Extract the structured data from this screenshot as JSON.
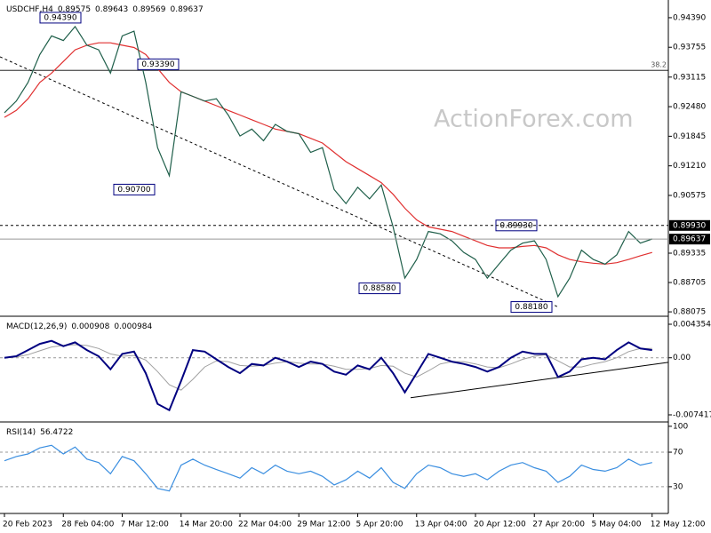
{
  "chart_data": [
    {
      "type": "line",
      "title": "USDCHF,H4",
      "ohlc": [
        0.89575,
        0.89643,
        0.89569,
        0.89637
      ],
      "watermark": "ActionForex.com",
      "categories": [
        "20 Feb 2023",
        null,
        null,
        null,
        null,
        "28 Feb 04:00",
        null,
        null,
        null,
        null,
        "7 Mar 12:00",
        null,
        null,
        null,
        null,
        "14 Mar 20:00",
        null,
        null,
        null,
        null,
        "22 Mar 04:00",
        null,
        null,
        null,
        null,
        "29 Mar 12:00",
        null,
        null,
        null,
        null,
        "5 Apr 20:00",
        null,
        null,
        null,
        null,
        "13 Apr 04:00",
        null,
        null,
        null,
        null,
        "20 Apr 12:00",
        null,
        null,
        null,
        null,
        "27 Apr 20:00",
        null,
        null,
        null,
        null,
        "5 May 04:00",
        null,
        null,
        null,
        null,
        "12 May 12:00"
      ],
      "values": [
        0.9235,
        0.926,
        0.93,
        0.936,
        0.94,
        0.939,
        0.942,
        0.938,
        0.937,
        0.932,
        0.94,
        0.941,
        0.93,
        0.916,
        0.91,
        0.928,
        0.927,
        0.926,
        0.9265,
        0.923,
        0.9185,
        0.92,
        0.9175,
        0.921,
        0.9195,
        0.919,
        0.915,
        0.916,
        0.907,
        0.904,
        0.9075,
        0.905,
        0.908,
        0.899,
        0.888,
        0.892,
        0.898,
        0.8975,
        0.896,
        0.8935,
        0.892,
        0.888,
        0.891,
        0.894,
        0.8955,
        0.896,
        0.892,
        0.884,
        0.888,
        0.894,
        0.892,
        0.891,
        0.893,
        0.898,
        0.8955,
        0.8964
      ],
      "color": "#1f5f4a",
      "ma_values": [
        0.9225,
        0.924,
        0.9265,
        0.93,
        0.932,
        0.9345,
        0.937,
        0.938,
        0.9385,
        0.9385,
        0.938,
        0.9375,
        0.936,
        0.933,
        0.93,
        0.928,
        0.927,
        0.926,
        0.925,
        0.924,
        0.923,
        0.922,
        0.921,
        0.92,
        0.9195,
        0.919,
        0.918,
        0.917,
        0.915,
        0.913,
        0.9115,
        0.91,
        0.9085,
        0.906,
        0.903,
        0.9005,
        0.899,
        0.8985,
        0.898,
        0.897,
        0.896,
        0.895,
        0.8945,
        0.8945,
        0.8948,
        0.895,
        0.8945,
        0.893,
        0.892,
        0.8915,
        0.8912,
        0.891,
        0.8913,
        0.892,
        0.8928,
        0.8935
      ],
      "ma_color": "#e03030",
      "ylim": [
        0.88,
        0.9477
      ],
      "yticks": [
        {
          "value": 0.9439,
          "label": "0.94390"
        },
        0.93755,
        0.93115,
        {
          "value": 0.9248,
          "label": "0.92480"
        },
        0.91845,
        {
          "value": 0.9121,
          "label": "0.91210"
        },
        0.90575,
        0.89335,
        0.88705,
        0.88075
      ],
      "annotations": [
        {
          "value": 0.9439,
          "label": "0.94390"
        },
        {
          "value": 0.9339,
          "label": "0.93390"
        },
        {
          "value": 0.907,
          "label": "0.90700"
        },
        {
          "value": 0.8858,
          "label": "0.88580"
        },
        {
          "value": 0.8993,
          "label": "0.89930"
        },
        {
          "value": 0.8818,
          "label": "0.88180"
        }
      ],
      "fib_level": {
        "value": 0.9326,
        "label": "38.2"
      },
      "trendline": [
        0.9355,
        0.8818
      ]
    },
    {
      "type": "line",
      "title": "MACD(12,26,9)",
      "readings": [
        0.000908,
        0.000984
      ],
      "values": [
        0.0,
        0.0002,
        0.001,
        0.0018,
        0.0022,
        0.0015,
        0.002,
        0.001,
        0.0002,
        -0.0015,
        0.0005,
        0.0008,
        -0.002,
        -0.006,
        -0.0068,
        -0.003,
        0.001,
        0.0008,
        -0.0002,
        -0.0012,
        -0.002,
        -0.0008,
        -0.001,
        0.0,
        -0.0005,
        -0.0012,
        -0.0005,
        -0.0008,
        -0.0018,
        -0.0022,
        -0.001,
        -0.0015,
        0.0,
        -0.002,
        -0.0045,
        -0.002,
        0.0005,
        0.0,
        -0.0005,
        -0.0008,
        -0.0012,
        -0.0018,
        -0.0012,
        0.0,
        0.0008,
        0.0005,
        0.0005,
        -0.0025,
        -0.0018,
        -0.0002,
        0.0,
        -0.0002,
        0.001,
        0.002,
        0.0012,
        0.001
      ],
      "color": "#000080",
      "signal_values": [
        0.0,
        0.0001,
        0.0004,
        0.0009,
        0.0014,
        0.0016,
        0.0017,
        0.0016,
        0.0012,
        0.0005,
        0.0002,
        0.0003,
        -0.0003,
        -0.0018,
        -0.0035,
        -0.0042,
        -0.0028,
        -0.0012,
        -0.0004,
        -0.0005,
        -0.001,
        -0.0011,
        -0.001,
        -0.0007,
        -0.0005,
        -0.0007,
        -0.0008,
        -0.0008,
        -0.0011,
        -0.0015,
        -0.0015,
        -0.0014,
        -0.001,
        -0.0011,
        -0.002,
        -0.0025,
        -0.0017,
        -0.0008,
        -0.0005,
        -0.0005,
        -0.0008,
        -0.0012,
        -0.0013,
        -0.0008,
        -0.0002,
        0.0002,
        0.0004,
        -0.0004,
        -0.0012,
        -0.0012,
        -0.0008,
        -0.0005,
        0.0,
        0.0008,
        0.0012,
        0.0012
      ],
      "signal_color": "#a0a0a0",
      "ylim": [
        -0.008109,
        0.005277
      ],
      "yticks": [
        0.004354,
        {
          "value": 0,
          "label": "0.00"
        },
        -0.007417
      ],
      "trendline": [
        -0.0052,
        -0.0006
      ]
    },
    {
      "type": "line",
      "title": "RSI(14)",
      "readings": [
        56.4722
      ],
      "values": [
        60,
        65,
        68,
        75,
        78,
        68,
        76,
        62,
        58,
        45,
        65,
        60,
        45,
        28,
        25,
        55,
        62,
        55,
        50,
        45,
        40,
        52,
        45,
        55,
        48,
        45,
        48,
        42,
        32,
        38,
        48,
        40,
        52,
        35,
        28,
        45,
        55,
        52,
        45,
        42,
        45,
        38,
        48,
        55,
        58,
        52,
        48,
        35,
        42,
        55,
        50,
        48,
        52,
        62,
        55,
        58
      ],
      "color": "#3a8ee0",
      "ylim": [
        -1,
        104
      ],
      "yticks": [
        100,
        70,
        30
      ],
      "grid": [
        70,
        30
      ]
    }
  ]
}
